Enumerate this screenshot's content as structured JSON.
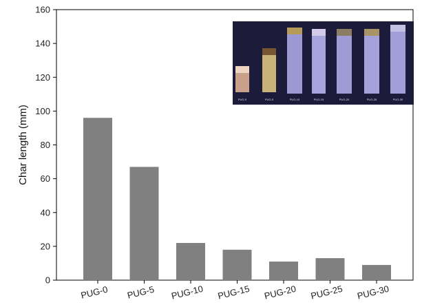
{
  "chart_data": {
    "type": "bar",
    "title": "",
    "xlabel": "",
    "ylabel": "Char length (mm)",
    "categories": [
      "PUG-0",
      "PUG-5",
      "PUG-10",
      "PUG-15",
      "PUG-20",
      "PUG-25",
      "PUG-30"
    ],
    "values": [
      96,
      67,
      22,
      18,
      11,
      13,
      9
    ],
    "ylim": [
      0,
      160
    ],
    "yticks": [
      0,
      20,
      40,
      60,
      80,
      100,
      120,
      140,
      160
    ],
    "bar_color": "#808080",
    "grid": false,
    "legend": "none",
    "inset_photo": {
      "description_labels": [
        "PUG-0",
        "PUG-5",
        "PUG-10",
        "PUG-15",
        "PUG-20",
        "PUG-25",
        "PUG-30"
      ],
      "background_color": "#1c1c3a"
    }
  }
}
